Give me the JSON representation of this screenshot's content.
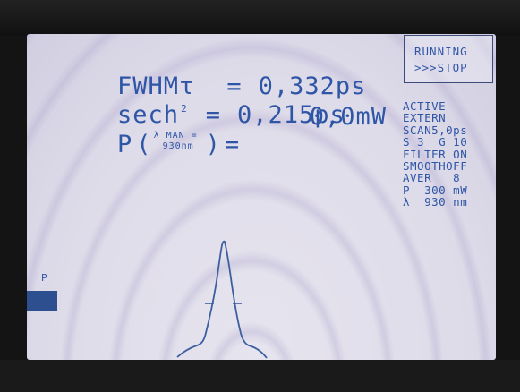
{
  "readout": {
    "fwhm_label": "FWHMτ",
    "fwhm_eq": "=",
    "fwhm_value": "0,332ps",
    "sech_label": "sech",
    "sech_exp": "2",
    "sech_eq": "=",
    "sech_value": "0,215ps",
    "power_label": "P",
    "power_open": "(",
    "power_lambda": "λ",
    "power_man": "MAN =",
    "power_nm": "930nm",
    "power_close": ")",
    "power_eq": "=",
    "power_value": "0,0mW"
  },
  "status": {
    "line1": "RUNNING",
    "line2": ">>>STOP"
  },
  "settings": [
    "ACTIVE",
    "EXTERN",
    "SCAN5,0ps",
    "S 3  G 10",
    "FILTER ON",
    "SMOOTHOFF",
    "AVER   8",
    "P  300 mW",
    "λ  930 nm"
  ],
  "axis": {
    "left_label": "P"
  },
  "colors": {
    "lcd_text": "#2f56a6",
    "trace": "#3d5fa0",
    "screen_bg": "#e6e4ee"
  }
}
